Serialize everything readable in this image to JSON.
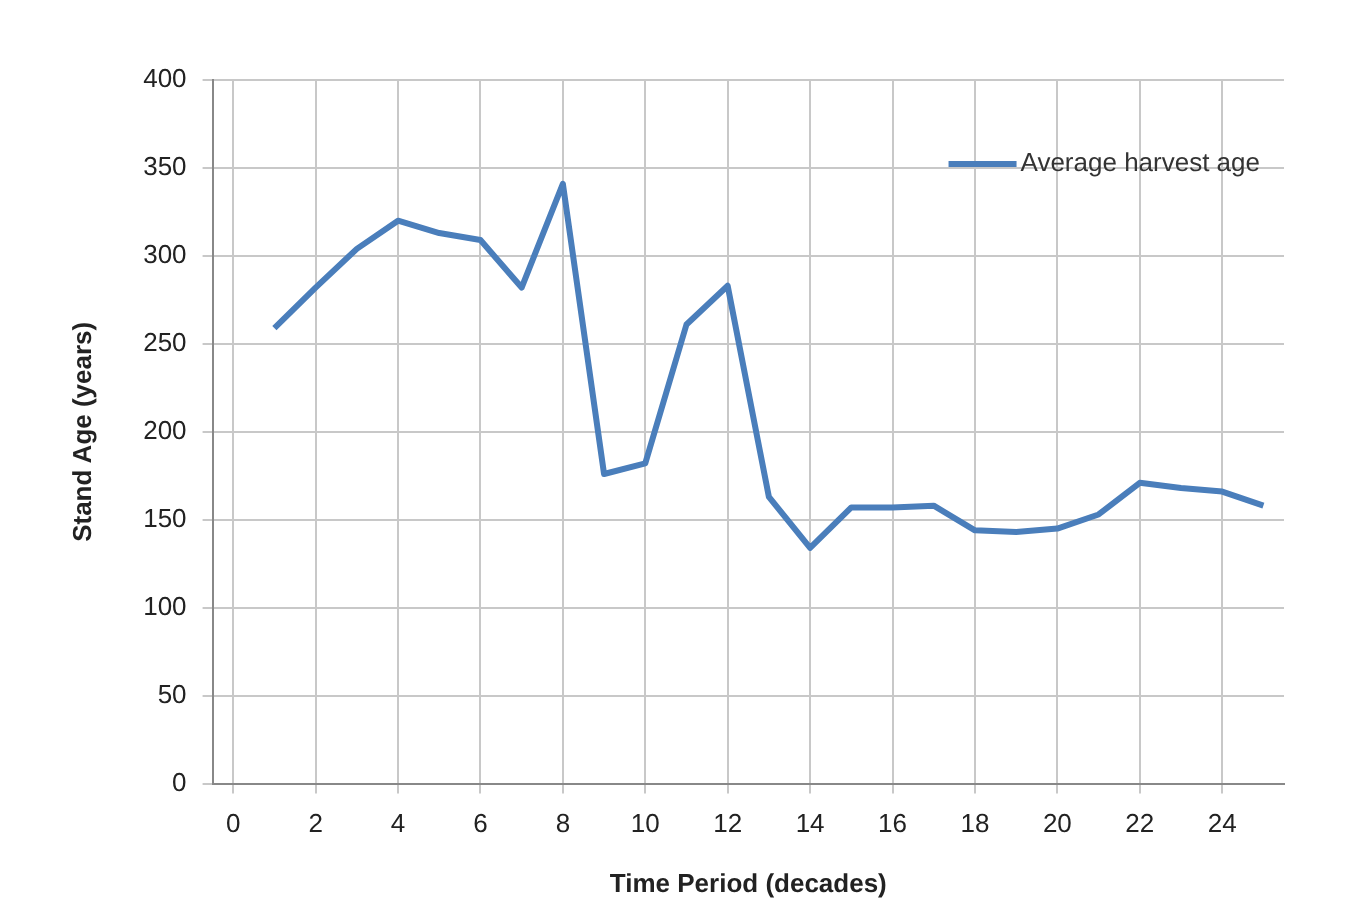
{
  "chart_data": {
    "type": "line",
    "xlabel": "Time Period (decades)",
    "ylabel": "Stand Age (years)",
    "x": [
      1,
      2,
      3,
      4,
      5,
      6,
      7,
      8,
      9,
      10,
      11,
      12,
      13,
      14,
      15,
      16,
      17,
      18,
      19,
      20,
      21,
      22,
      23,
      24,
      25
    ],
    "series": [
      {
        "name": "Average harvest age",
        "color": "#4a7ebb",
        "values": [
          259,
          282,
          304,
          320,
          313,
          309,
          282,
          341,
          176,
          182,
          261,
          283,
          163,
          134,
          157,
          157,
          158,
          144,
          143,
          145,
          153,
          171,
          168,
          166,
          158
        ]
      }
    ],
    "xlim": [
      -0.5,
      25.5
    ],
    "xticks": [
      0,
      2,
      4,
      6,
      8,
      10,
      12,
      14,
      16,
      18,
      20,
      22,
      24
    ],
    "ylim": [
      0,
      400
    ],
    "yticks": [
      0,
      50,
      100,
      150,
      200,
      250,
      300,
      350,
      400
    ],
    "grid": true,
    "legend": "top right",
    "marker": "none",
    "line_style": "solid"
  }
}
